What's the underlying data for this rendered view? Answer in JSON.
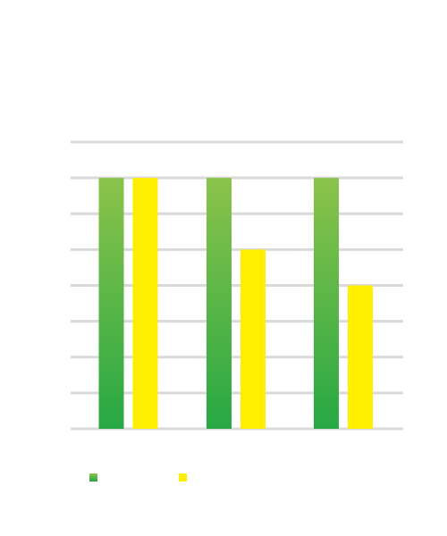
{
  "chart_data": {
    "type": "bar",
    "categories": [
      "",
      "",
      ""
    ],
    "series": [
      {
        "values": [
          7,
          7,
          7
        ],
        "color_top": "#8bc34a",
        "color_bottom": "#27a844"
      },
      {
        "values": [
          7,
          5,
          4
        ],
        "color": "#ffee00"
      }
    ],
    "ylim": [
      0,
      8
    ],
    "grid": true,
    "grid_color": "#d9d9d9",
    "legend": "bottom-left",
    "title": "",
    "xlabel": "",
    "ylabel": ""
  }
}
